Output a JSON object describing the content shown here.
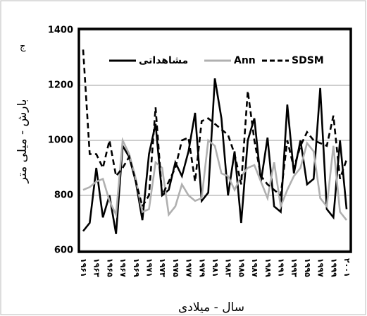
{
  "chart_data": {
    "type": "line",
    "corner_note": "ج",
    "x_title": "سال - میلادی",
    "y_title": "بارش  -  میلی متر",
    "categories": [
      "۱۹۶۱",
      null,
      "۱۹۶۳",
      null,
      "۱۹۶۵",
      null,
      "۱۹۶۷",
      null,
      "۱۹۶۹",
      null,
      "۱۹۷۱",
      null,
      "۱۹۷۳",
      null,
      "۱۹۷۵",
      null,
      "۱۹۷۷",
      null,
      "۱۹۷۹",
      null,
      "۱۹۸۱",
      null,
      "۱۹۸۳",
      null,
      "۱۹۸۵",
      null,
      "۱۹۸۷",
      null,
      "۱۹۸۹",
      null,
      "۱۹۹۱",
      null,
      "۱۹۹۳",
      null,
      "۱۹۹۵",
      null,
      "۱۹۹۷",
      null,
      "۱۹۹۹",
      null,
      "۲۰۰۱"
    ],
    "series": [
      {
        "name": "مشاهداتی",
        "color": "#000000",
        "dash": false,
        "values": [
          670,
          700,
          900,
          720,
          800,
          660,
          980,
          940,
          850,
          710,
          950,
          1060,
          800,
          820,
          920,
          870,
          960,
          1100,
          780,
          810,
          1225,
          1080,
          800,
          960,
          700,
          1000,
          1080,
          850,
          1010,
          760,
          740,
          1130,
          880,
          1000,
          840,
          860,
          1190,
          750,
          720,
          1000,
          750
        ]
      },
      {
        "name": "Ann",
        "color": "#b0b0b0",
        "dash": false,
        "values": [
          820,
          830,
          850,
          860,
          780,
          730,
          1000,
          950,
          860,
          740,
          750,
          920,
          900,
          730,
          760,
          840,
          800,
          780,
          790,
          1000,
          980,
          880,
          870,
          820,
          870,
          900,
          910,
          850,
          790,
          920,
          760,
          820,
          870,
          900,
          990,
          960,
          790,
          760,
          980,
          740,
          710
        ]
      },
      {
        "name": "SDSM",
        "color": "#000000",
        "dash": true,
        "values": [
          1330,
          950,
          950,
          900,
          1000,
          870,
          900,
          940,
          850,
          760,
          800,
          1120,
          800,
          850,
          900,
          1000,
          1010,
          850,
          1070,
          1080,
          1060,
          1040,
          1020,
          950,
          840,
          1180,
          1000,
          870,
          840,
          820,
          800,
          1000,
          900,
          980,
          1030,
          1000,
          990,
          980,
          1090,
          860,
          930
        ]
      }
    ],
    "ylim": [
      600,
      1400
    ],
    "yticks": [
      600,
      800,
      1000,
      1200,
      1400
    ],
    "grid": true
  }
}
